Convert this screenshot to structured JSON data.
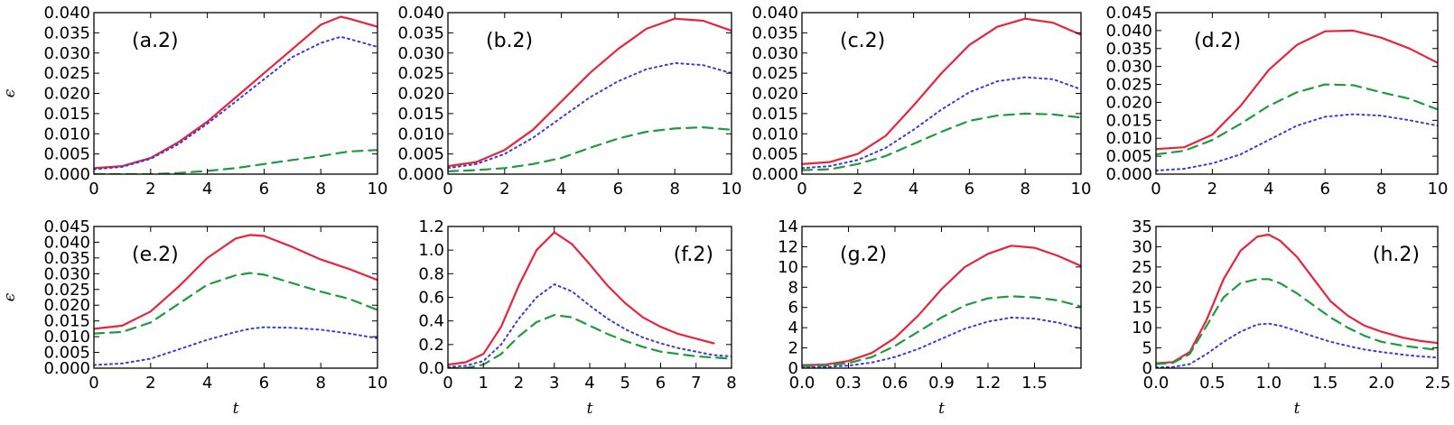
{
  "figure": {
    "ylabel": "ϵ",
    "xlabel": "t"
  },
  "styles": {
    "series": [
      {
        "color": "#e8243c",
        "dash": "none",
        "width": 2.2
      },
      {
        "color": "#3a3ae0",
        "dash": "2 4",
        "width": 2.0
      },
      {
        "color": "#1f9a3c",
        "dash": "11 7",
        "width": 2.2
      }
    ]
  },
  "chart_data": [
    {
      "panel": "(a.2)",
      "type": "line",
      "label_pos": "top-left",
      "xlim": [
        0,
        10
      ],
      "xticks": [
        "0",
        "2",
        "4",
        "6",
        "8",
        "10"
      ],
      "ylim": [
        0,
        0.04
      ],
      "yticks": [
        "0.000",
        "0.005",
        "0.010",
        "0.015",
        "0.020",
        "0.025",
        "0.030",
        "0.035",
        "0.040"
      ],
      "x": [
        0,
        1,
        2,
        3,
        4,
        5,
        6,
        7,
        8,
        8.7,
        9,
        10
      ],
      "series": [
        {
          "values": [
            0.0015,
            0.002,
            0.004,
            0.008,
            0.013,
            0.019,
            0.025,
            0.031,
            0.037,
            0.039,
            0.0385,
            0.0365
          ]
        },
        {
          "values": [
            0.0012,
            0.0018,
            0.0038,
            0.0075,
            0.0125,
            0.018,
            0.0235,
            0.029,
            0.0325,
            0.034,
            0.0335,
            0.0315
          ]
        },
        {
          "values": [
            0.0,
            0.0,
            0.0,
            0.0003,
            0.0008,
            0.0015,
            0.0025,
            0.0035,
            0.0045,
            0.0053,
            0.0056,
            0.006
          ]
        }
      ]
    },
    {
      "panel": "(b.2)",
      "type": "line",
      "label_pos": "top-left",
      "xlim": [
        0,
        10
      ],
      "xticks": [
        "0",
        "2",
        "4",
        "6",
        "8",
        "10"
      ],
      "ylim": [
        0,
        0.04
      ],
      "yticks": [
        "0.000",
        "0.005",
        "0.010",
        "0.015",
        "0.020",
        "0.025",
        "0.030",
        "0.035",
        "0.040"
      ],
      "x": [
        0,
        1,
        2,
        3,
        4,
        5,
        6,
        7,
        8,
        9,
        10
      ],
      "series": [
        {
          "values": [
            0.002,
            0.003,
            0.006,
            0.011,
            0.018,
            0.025,
            0.031,
            0.036,
            0.0385,
            0.038,
            0.0355
          ]
        },
        {
          "values": [
            0.0015,
            0.0025,
            0.005,
            0.009,
            0.014,
            0.019,
            0.023,
            0.026,
            0.0275,
            0.027,
            0.025
          ]
        },
        {
          "values": [
            0.0007,
            0.001,
            0.0015,
            0.0025,
            0.004,
            0.0065,
            0.0088,
            0.0105,
            0.0113,
            0.0116,
            0.011
          ]
        }
      ]
    },
    {
      "panel": "(c.2)",
      "type": "line",
      "label_pos": "top-left",
      "xlim": [
        0,
        10
      ],
      "xticks": [
        "0",
        "2",
        "4",
        "6",
        "8",
        "10"
      ],
      "ylim": [
        0,
        0.04
      ],
      "yticks": [
        "0.000",
        "0.005",
        "0.010",
        "0.015",
        "0.020",
        "0.025",
        "0.030",
        "0.035",
        "0.040"
      ],
      "x": [
        0,
        1,
        2,
        3,
        4,
        5,
        6,
        7,
        8,
        9,
        10
      ],
      "series": [
        {
          "values": [
            0.0025,
            0.003,
            0.005,
            0.0095,
            0.017,
            0.025,
            0.032,
            0.0365,
            0.0385,
            0.0375,
            0.0345
          ]
        },
        {
          "values": [
            0.0015,
            0.002,
            0.0035,
            0.0065,
            0.011,
            0.016,
            0.0203,
            0.023,
            0.024,
            0.0235,
            0.021
          ]
        },
        {
          "values": [
            0.001,
            0.0012,
            0.0025,
            0.0045,
            0.0075,
            0.0105,
            0.0132,
            0.0145,
            0.015,
            0.0148,
            0.014
          ]
        }
      ]
    },
    {
      "panel": "(d.2)",
      "type": "line",
      "label_pos": "top-left",
      "xlim": [
        0,
        10
      ],
      "xticks": [
        "0",
        "2",
        "4",
        "6",
        "8",
        "10"
      ],
      "ylim": [
        0,
        0.045
      ],
      "yticks": [
        "0.000",
        "0.005",
        "0.010",
        "0.015",
        "0.020",
        "0.025",
        "0.030",
        "0.035",
        "0.040",
        "0.045"
      ],
      "x": [
        0,
        1,
        2,
        3,
        4,
        5,
        6,
        7,
        8,
        9,
        10
      ],
      "series": [
        {
          "values": [
            0.007,
            0.0075,
            0.011,
            0.019,
            0.029,
            0.036,
            0.0398,
            0.04,
            0.038,
            0.035,
            0.031
          ]
        },
        {
          "values": [
            0.001,
            0.0015,
            0.003,
            0.0055,
            0.0095,
            0.0135,
            0.016,
            0.0167,
            0.0163,
            0.015,
            0.0135
          ]
        },
        {
          "values": [
            0.0055,
            0.0065,
            0.0095,
            0.014,
            0.019,
            0.0228,
            0.025,
            0.0248,
            0.0228,
            0.021,
            0.018
          ]
        }
      ]
    },
    {
      "panel": "(e.2)",
      "type": "line",
      "label_pos": "top-left",
      "xlim": [
        0,
        10
      ],
      "xticks": [
        "0",
        "2",
        "4",
        "6",
        "8",
        "10"
      ],
      "ylim": [
        0,
        0.045
      ],
      "yticks": [
        "0.000",
        "0.005",
        "0.010",
        "0.015",
        "0.020",
        "0.025",
        "0.030",
        "0.035",
        "0.040",
        "0.045"
      ],
      "x": [
        0,
        1,
        2,
        3,
        4,
        5,
        5.5,
        6,
        7,
        8,
        9,
        10
      ],
      "series": [
        {
          "values": [
            0.0125,
            0.0135,
            0.018,
            0.026,
            0.035,
            0.0412,
            0.0423,
            0.042,
            0.0385,
            0.0345,
            0.0315,
            0.028
          ]
        },
        {
          "values": [
            0.001,
            0.0015,
            0.003,
            0.006,
            0.009,
            0.0115,
            0.0125,
            0.013,
            0.0128,
            0.0122,
            0.011,
            0.0095
          ]
        },
        {
          "values": [
            0.011,
            0.0115,
            0.0145,
            0.0205,
            0.0265,
            0.0295,
            0.0302,
            0.0297,
            0.027,
            0.0243,
            0.022,
            0.0185
          ]
        }
      ]
    },
    {
      "panel": "(f.2)",
      "type": "line",
      "label_pos": "top-right",
      "xlim": [
        0,
        8
      ],
      "xticks": [
        "0",
        "1",
        "2",
        "3",
        "4",
        "5",
        "6",
        "7",
        "8"
      ],
      "ylim": [
        0,
        1.2
      ],
      "yticks": [
        "0.0",
        "0.2",
        "0.4",
        "0.6",
        "0.8",
        "1.0",
        "1.2"
      ],
      "x": [
        0,
        0.5,
        1,
        1.5,
        2,
        2.5,
        3,
        3.5,
        4,
        4.5,
        5,
        5.5,
        6,
        6.5,
        7,
        7.5,
        8
      ],
      "series": [
        {
          "values": [
            0.03,
            0.05,
            0.12,
            0.35,
            0.7,
            1.0,
            1.15,
            1.05,
            0.88,
            0.7,
            0.55,
            0.43,
            0.35,
            0.29,
            0.25,
            0.21,
            null
          ]
        },
        {
          "values": [
            0.01,
            0.02,
            0.06,
            0.2,
            0.42,
            0.6,
            0.71,
            0.65,
            0.53,
            0.42,
            0.33,
            0.26,
            0.21,
            0.17,
            0.14,
            0.11,
            0.1
          ]
        },
        {
          "values": [
            0.0,
            0.0,
            0.03,
            0.12,
            0.27,
            0.39,
            0.45,
            0.43,
            0.36,
            0.29,
            0.23,
            0.18,
            0.14,
            0.12,
            0.1,
            0.09,
            0.08
          ]
        }
      ]
    },
    {
      "panel": "(g.2)",
      "type": "line",
      "label_pos": "top-left",
      "xlim": [
        0,
        1.8
      ],
      "xticks": [
        "0.0",
        "0.3",
        "0.6",
        "0.9",
        "1.2",
        "1.5"
      ],
      "ylim": [
        0,
        14
      ],
      "yticks": [
        "0",
        "2",
        "4",
        "6",
        "8",
        "10",
        "12",
        "14"
      ],
      "x": [
        0,
        0.15,
        0.3,
        0.45,
        0.6,
        0.75,
        0.9,
        1.05,
        1.2,
        1.35,
        1.5,
        1.65,
        1.8
      ],
      "series": [
        {
          "values": [
            0.3,
            0.35,
            0.7,
            1.5,
            3.0,
            5.2,
            7.8,
            10.0,
            11.3,
            12.1,
            11.9,
            11.1,
            10.1
          ]
        },
        {
          "values": [
            0.1,
            0.12,
            0.25,
            0.55,
            1.1,
            1.9,
            2.9,
            3.9,
            4.6,
            5.0,
            4.9,
            4.5,
            3.9
          ]
        },
        {
          "values": [
            0.2,
            0.25,
            0.5,
            1.1,
            2.2,
            3.6,
            5.0,
            6.2,
            6.9,
            7.1,
            7.0,
            6.7,
            6.1
          ]
        }
      ]
    },
    {
      "panel": "(h.2)",
      "type": "line",
      "label_pos": "top-right",
      "xlim": [
        0,
        2.5
      ],
      "xticks": [
        "0.0",
        "0.5",
        "1.0",
        "1.5",
        "2.0",
        "2.5"
      ],
      "ylim": [
        0,
        35
      ],
      "yticks": [
        "0",
        "5",
        "10",
        "15",
        "20",
        "25",
        "30",
        "35"
      ],
      "x": [
        0,
        0.15,
        0.3,
        0.45,
        0.6,
        0.75,
        0.9,
        1.0,
        1.1,
        1.25,
        1.4,
        1.55,
        1.7,
        1.85,
        2.0,
        2.2,
        2.35,
        2.5
      ],
      "series": [
        {
          "values": [
            1.2,
            1.5,
            4.0,
            12.0,
            22.0,
            29.0,
            32.5,
            33.0,
            31.5,
            27.5,
            22.0,
            16.5,
            13.0,
            10.5,
            9.0,
            7.5,
            6.7,
            6.2
          ]
        },
        {
          "values": [
            0.2,
            0.3,
            1.0,
            3.5,
            6.5,
            9.0,
            10.8,
            11.0,
            10.5,
            9.2,
            7.8,
            6.5,
            5.5,
            4.6,
            4.0,
            3.3,
            2.9,
            2.6
          ]
        },
        {
          "values": [
            1.0,
            1.3,
            3.5,
            10.5,
            17.5,
            21.0,
            22.0,
            22.0,
            21.0,
            18.5,
            15.5,
            12.5,
            10.0,
            8.0,
            6.5,
            5.5,
            5.0,
            4.5
          ]
        }
      ]
    }
  ]
}
